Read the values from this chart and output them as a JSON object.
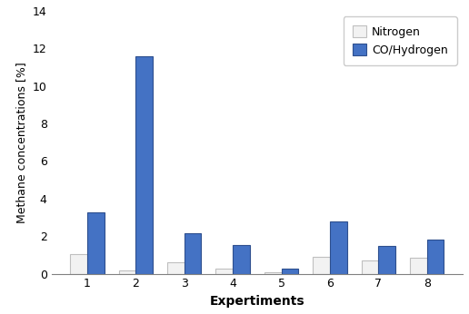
{
  "categories": [
    "1",
    "2",
    "3",
    "4",
    "5",
    "6",
    "7",
    "8"
  ],
  "nitrogen_values": [
    1.05,
    0.18,
    0.62,
    0.28,
    0.08,
    0.92,
    0.72,
    0.83
  ],
  "co_hydrogen_values": [
    3.25,
    11.6,
    2.15,
    1.52,
    0.28,
    2.78,
    1.47,
    1.82
  ],
  "nitrogen_color": "#f2f2f2",
  "nitrogen_edge_color": "#bfbfbf",
  "co_hydrogen_color": "#4472c4",
  "co_hydrogen_edge_color": "#2e4f8e",
  "nitrogen_label": "Nitrogen",
  "co_hydrogen_label": "CO/Hydrogen",
  "xlabel": "Expertiments",
  "ylabel": "Methane concentrations [%]",
  "ylim": [
    0,
    14
  ],
  "yticks": [
    0,
    2,
    4,
    6,
    8,
    10,
    12,
    14
  ],
  "bar_width": 0.35,
  "background_color": "#ffffff",
  "label_fontsize": 10,
  "tick_fontsize": 9,
  "legend_fontsize": 9
}
